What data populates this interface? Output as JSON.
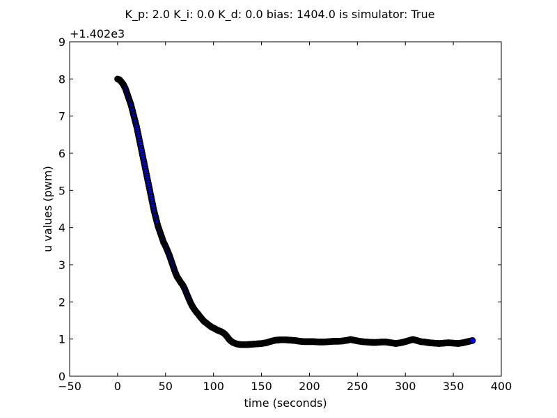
{
  "chart_data": {
    "type": "scatter",
    "title": "K_p: 2.0 K_i: 0.0 K_d: 0.0 bias: 1404.0 is simulator: True",
    "xlabel": "time (seconds)",
    "ylabel": "u values (pwm)",
    "y_offset_label": "+1.402e3",
    "xlim": [
      -50,
      400
    ],
    "ylim": [
      0,
      9
    ],
    "x_ticks": [
      -50,
      0,
      50,
      100,
      150,
      200,
      250,
      300,
      350,
      400
    ],
    "y_ticks": [
      0,
      1,
      2,
      3,
      4,
      5,
      6,
      7,
      8,
      9
    ],
    "grid": false,
    "marker_face": "#0000ff",
    "marker_edge": "#000000",
    "series": [
      {
        "points": [
          [
            0,
            8.0
          ],
          [
            2,
            7.98
          ],
          [
            4,
            7.92
          ],
          [
            6,
            7.85
          ],
          [
            8,
            7.75
          ],
          [
            10,
            7.6
          ],
          [
            12,
            7.45
          ],
          [
            14,
            7.3
          ],
          [
            16,
            7.1
          ],
          [
            18,
            6.9
          ],
          [
            20,
            6.7
          ],
          [
            22,
            6.45
          ],
          [
            24,
            6.2
          ],
          [
            26,
            5.95
          ],
          [
            28,
            5.7
          ],
          [
            30,
            5.45
          ],
          [
            32,
            5.2
          ],
          [
            34,
            4.95
          ],
          [
            36,
            4.7
          ],
          [
            38,
            4.45
          ],
          [
            40,
            4.25
          ],
          [
            42,
            4.05
          ],
          [
            44,
            3.9
          ],
          [
            46,
            3.75
          ],
          [
            48,
            3.6
          ],
          [
            50,
            3.5
          ],
          [
            52,
            3.38
          ],
          [
            54,
            3.25
          ],
          [
            56,
            3.1
          ],
          [
            58,
            2.95
          ],
          [
            60,
            2.8
          ],
          [
            62,
            2.68
          ],
          [
            64,
            2.6
          ],
          [
            66,
            2.52
          ],
          [
            68,
            2.45
          ],
          [
            70,
            2.35
          ],
          [
            72,
            2.22
          ],
          [
            74,
            2.1
          ],
          [
            76,
            1.98
          ],
          [
            78,
            1.88
          ],
          [
            80,
            1.8
          ],
          [
            82,
            1.73
          ],
          [
            84,
            1.67
          ],
          [
            86,
            1.6
          ],
          [
            88,
            1.54
          ],
          [
            90,
            1.48
          ],
          [
            92,
            1.44
          ],
          [
            94,
            1.4
          ],
          [
            96,
            1.36
          ],
          [
            98,
            1.32
          ],
          [
            100,
            1.3
          ],
          [
            102,
            1.27
          ],
          [
            104,
            1.24
          ],
          [
            106,
            1.22
          ],
          [
            108,
            1.2
          ],
          [
            110,
            1.17
          ],
          [
            112,
            1.13
          ],
          [
            114,
            1.07
          ],
          [
            116,
            1.0
          ],
          [
            118,
            0.95
          ],
          [
            120,
            0.91
          ],
          [
            122,
            0.89
          ],
          [
            124,
            0.87
          ],
          [
            126,
            0.86
          ],
          [
            128,
            0.85
          ],
          [
            130,
            0.85
          ],
          [
            135,
            0.85
          ],
          [
            140,
            0.86
          ],
          [
            145,
            0.87
          ],
          [
            150,
            0.88
          ],
          [
            155,
            0.9
          ],
          [
            160,
            0.94
          ],
          [
            165,
            0.97
          ],
          [
            170,
            0.98
          ],
          [
            175,
            0.98
          ],
          [
            180,
            0.97
          ],
          [
            185,
            0.96
          ],
          [
            190,
            0.94
          ],
          [
            195,
            0.93
          ],
          [
            200,
            0.93
          ],
          [
            205,
            0.93
          ],
          [
            210,
            0.92
          ],
          [
            215,
            0.92
          ],
          [
            220,
            0.93
          ],
          [
            225,
            0.94
          ],
          [
            230,
            0.94
          ],
          [
            235,
            0.95
          ],
          [
            240,
            0.97
          ],
          [
            243,
            0.99
          ],
          [
            246,
            0.97
          ],
          [
            250,
            0.95
          ],
          [
            255,
            0.93
          ],
          [
            260,
            0.92
          ],
          [
            265,
            0.91
          ],
          [
            270,
            0.91
          ],
          [
            275,
            0.92
          ],
          [
            280,
            0.92
          ],
          [
            285,
            0.9
          ],
          [
            290,
            0.88
          ],
          [
            295,
            0.9
          ],
          [
            300,
            0.93
          ],
          [
            305,
            0.97
          ],
          [
            308,
            0.99
          ],
          [
            312,
            0.96
          ],
          [
            316,
            0.93
          ],
          [
            320,
            0.92
          ],
          [
            325,
            0.9
          ],
          [
            330,
            0.89
          ],
          [
            335,
            0.88
          ],
          [
            340,
            0.89
          ],
          [
            345,
            0.9
          ],
          [
            350,
            0.89
          ],
          [
            355,
            0.88
          ],
          [
            360,
            0.9
          ],
          [
            365,
            0.93
          ],
          [
            370,
            0.96
          ]
        ]
      }
    ]
  }
}
